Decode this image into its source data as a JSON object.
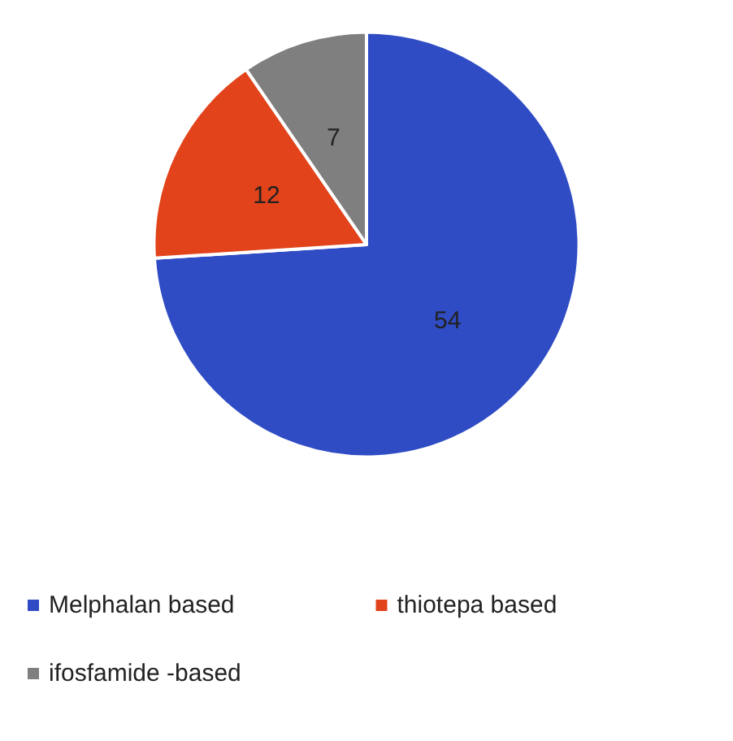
{
  "chart_data": {
    "type": "pie",
    "categories": [
      "Melphalan based",
      "thiotepa based",
      "ifosfamide -based"
    ],
    "values": [
      54,
      12,
      7
    ],
    "colors": [
      "#2f4cc4",
      "#e2431b",
      "#7f7f7f"
    ],
    "data_labels": true,
    "legend": "bottom"
  }
}
